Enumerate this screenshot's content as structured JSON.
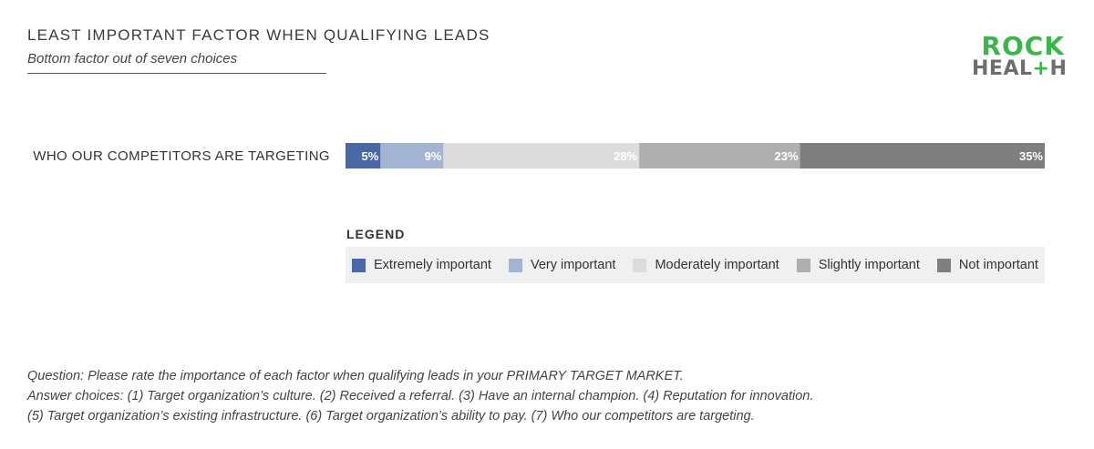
{
  "header": {
    "title": "LEAST IMPORTANT FACTOR WHEN QUALIFYING LEADS",
    "subtitle": "Bottom factor out of seven choices"
  },
  "logo": {
    "line1": "ROCK",
    "line2_prefix": "HEAL",
    "line2_plus": "+",
    "line2_suffix": "H"
  },
  "chart_data": {
    "type": "bar",
    "orientation": "horizontal",
    "stacked": true,
    "categories": [
      "WHO OUR COMPETITORS ARE TARGETING"
    ],
    "xlim": [
      0,
      100
    ],
    "series": [
      {
        "name": "Extremely important",
        "values": [
          5
        ],
        "label": "5%",
        "color": "#4a68a6"
      },
      {
        "name": "Very important",
        "values": [
          9
        ],
        "label": "9%",
        "color": "#a3b4d2"
      },
      {
        "name": "Moderately important",
        "values": [
          28
        ],
        "label": "28%",
        "color": "#dcdcdc"
      },
      {
        "name": "Slightly important",
        "values": [
          23
        ],
        "label": "23%",
        "color": "#aeaeae"
      },
      {
        "name": "Not important",
        "values": [
          35
        ],
        "label": "35%",
        "color": "#7f7f7f"
      }
    ],
    "legend_title": "LEGEND",
    "legend_position": "bottom",
    "grid": false
  },
  "notes": [
    "Question: Please rate the importance of each factor when qualifying leads in your PRIMARY TARGET MARKET.",
    "Answer choices: (1) Target organization’s culture. (2) Received a referral. (3) Have an internal champion. (4) Reputation for innovation.",
    "(5) Target organization’s existing infrastructure. (6) Target organization’s ability to pay. (7) Who our competitors are targeting."
  ]
}
